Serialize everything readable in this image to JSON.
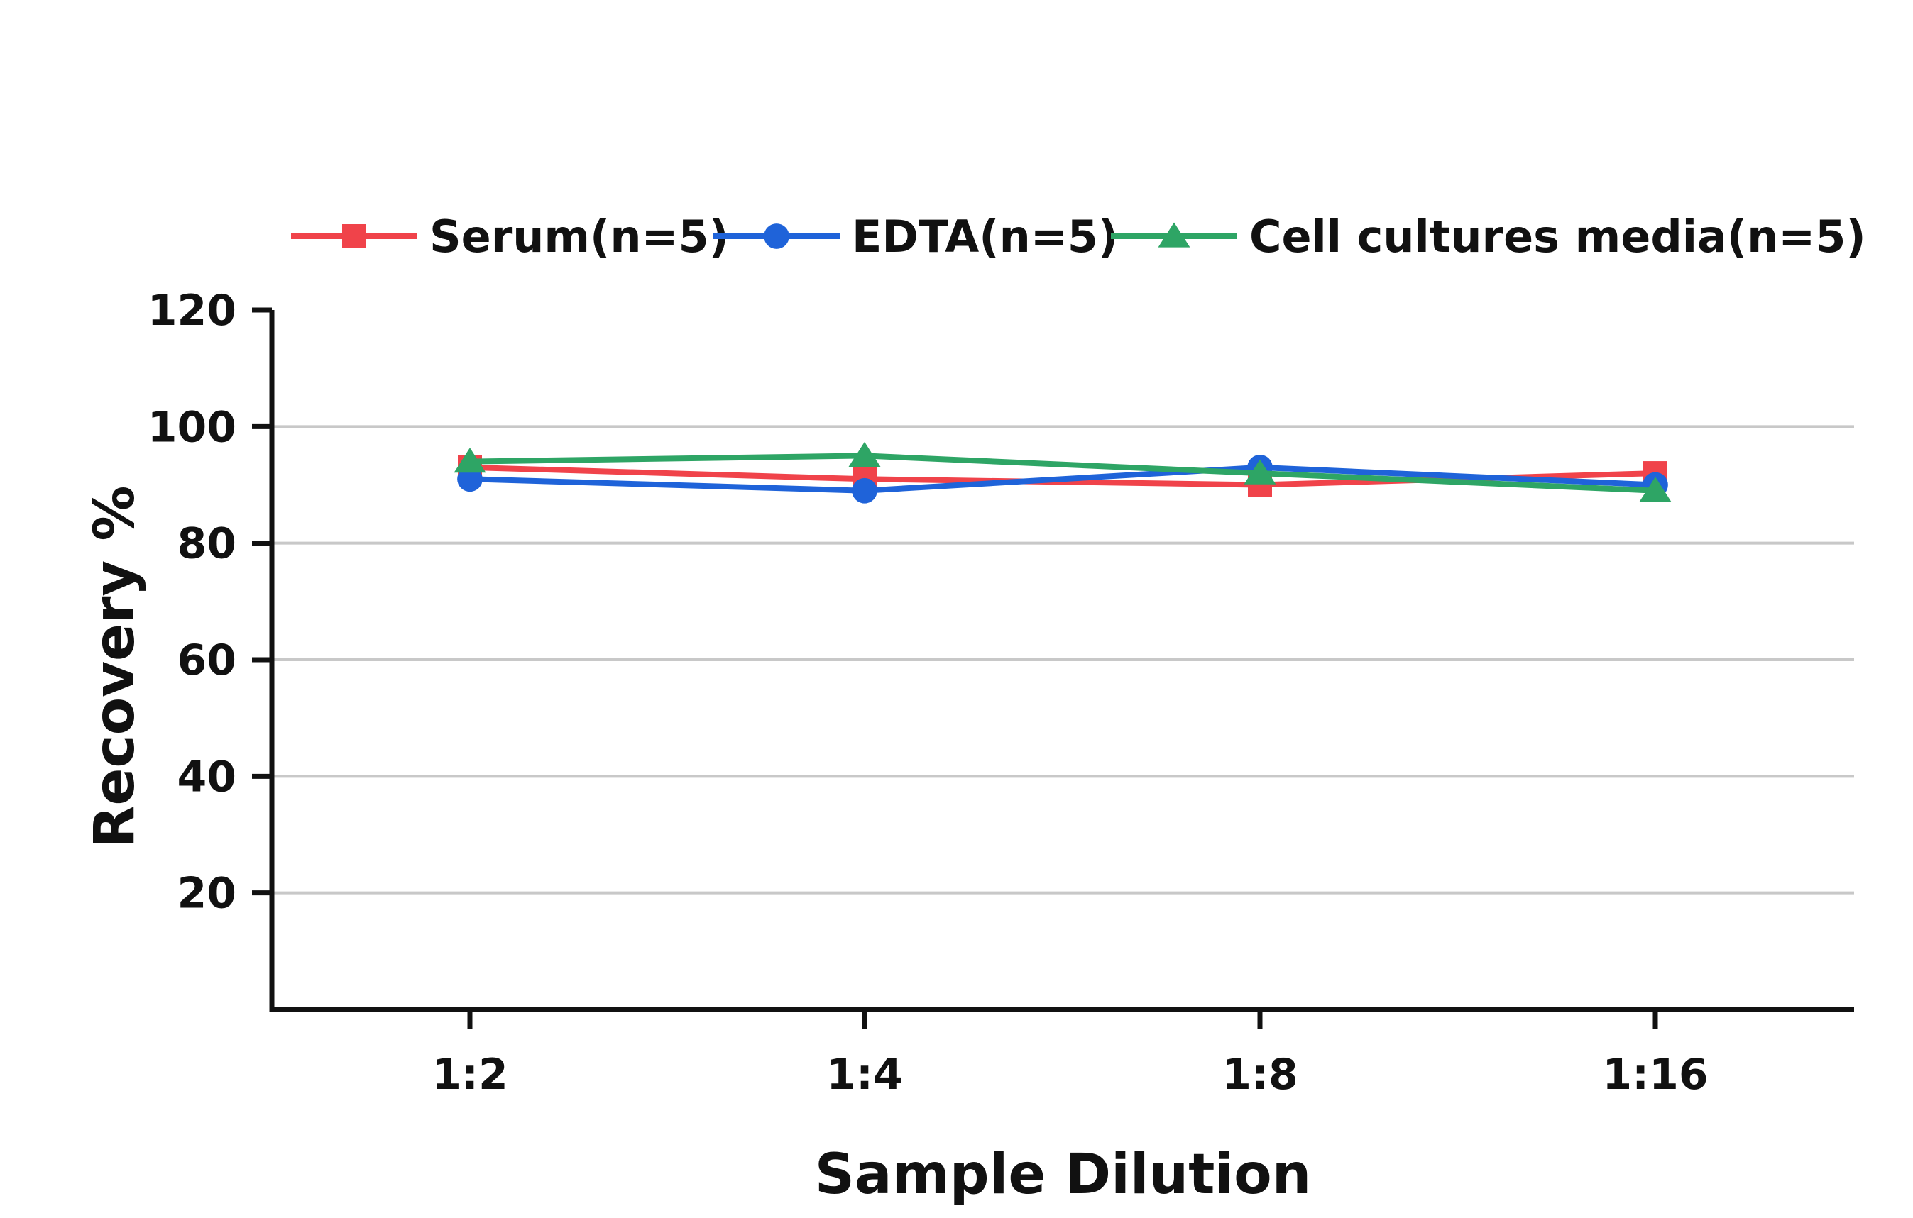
{
  "chart_data": {
    "type": "line",
    "title": "",
    "xlabel": "Sample Dilution",
    "ylabel": "Recovery %",
    "categories": [
      "1:2",
      "1:4",
      "1:8",
      "1:16"
    ],
    "ylim": [
      0,
      120
    ],
    "yticks": [
      20,
      40,
      60,
      80,
      100,
      120
    ],
    "ytick_labels": [
      "20",
      "40",
      "60",
      "80",
      "100",
      "120"
    ],
    "grid": "horizontal",
    "legend_position": "top",
    "series": [
      {
        "name": "Serum(n=5)",
        "marker": "square",
        "color": "#f0434a",
        "values": [
          93,
          91,
          90,
          92
        ]
      },
      {
        "name": "EDTA(n=5)",
        "marker": "circle",
        "color": "#1f63d9",
        "values": [
          91,
          89,
          93,
          90
        ]
      },
      {
        "name": "Cell cultures media(n=5)",
        "marker": "triangle",
        "color": "#2ea565",
        "values": [
          94,
          95,
          92,
          89
        ]
      }
    ]
  }
}
